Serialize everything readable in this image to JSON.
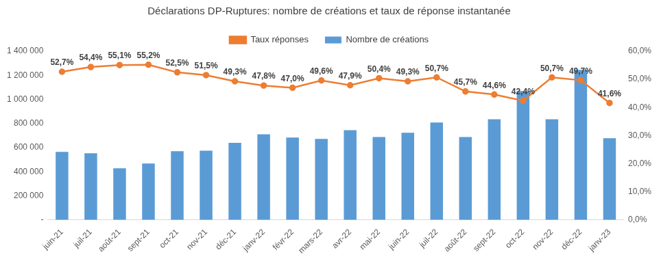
{
  "chart_data": {
    "type": "bar",
    "title": "Déclarations DP-Ruptures: nombre de créations et taux de réponse instantanée",
    "categories": [
      "juin-21",
      "juil-21",
      "août-21",
      "sept-21",
      "oct-21",
      "nov-21",
      "déc-21",
      "janv-22",
      "févr-22",
      "mars-22",
      "avr-22",
      "mai-22",
      "juin-22",
      "juil-22",
      "août-22",
      "sept-22",
      "oct-22",
      "nov-22",
      "déc-22",
      "janv-23"
    ],
    "series": [
      {
        "name": "Nombre de créations",
        "type": "bar",
        "color": "#5b9bd5",
        "values": [
          565000,
          553000,
          428000,
          468000,
          570000,
          575000,
          640000,
          710000,
          683000,
          672000,
          745000,
          688000,
          723000,
          808000,
          688000,
          835000,
          1070000,
          835000,
          1245000,
          678000
        ]
      },
      {
        "name": "Taux réponses",
        "type": "line",
        "color": "#ed7d31",
        "marker": "circle",
        "axis": "y2",
        "data_labels": true,
        "values": [
          52.7,
          54.4,
          55.1,
          55.2,
          52.5,
          51.5,
          49.3,
          47.8,
          47.0,
          49.6,
          47.9,
          50.4,
          49.3,
          50.7,
          45.7,
          44.6,
          42.4,
          50.7,
          49.7,
          41.6
        ],
        "value_labels": [
          "52,7%",
          "54,4%",
          "55,1%",
          "55,2%",
          "52,5%",
          "51,5%",
          "49,3%",
          "47,8%",
          "47,0%",
          "49,6%",
          "47,9%",
          "50,4%",
          "49,3%",
          "50,7%",
          "45,7%",
          "44,6%",
          "42,4%",
          "50,7%",
          "49,7%",
          "41,6%"
        ]
      }
    ],
    "ylim": [
      0,
      1400000
    ],
    "yticks": [
      {
        "value": 0,
        "label": "-"
      },
      {
        "value": 200000,
        "label": "200 000"
      },
      {
        "value": 400000,
        "label": "400 000"
      },
      {
        "value": 600000,
        "label": "600 000"
      },
      {
        "value": 800000,
        "label": "800 000"
      },
      {
        "value": 1000000,
        "label": "1 000 000"
      },
      {
        "value": 1200000,
        "label": "1 200 000"
      },
      {
        "value": 1400000,
        "label": "1 400 000"
      }
    ],
    "y2lim": [
      0,
      60
    ],
    "y2ticks": [
      {
        "value": 0,
        "label": "0,0%"
      },
      {
        "value": 10,
        "label": "10,0%"
      },
      {
        "value": 20,
        "label": "20,0%"
      },
      {
        "value": 30,
        "label": "30,0%"
      },
      {
        "value": 40,
        "label": "40,0%"
      },
      {
        "value": 50,
        "label": "50,0%"
      },
      {
        "value": 60,
        "label": "60,0%"
      }
    ],
    "grid": false,
    "legend": "top"
  }
}
